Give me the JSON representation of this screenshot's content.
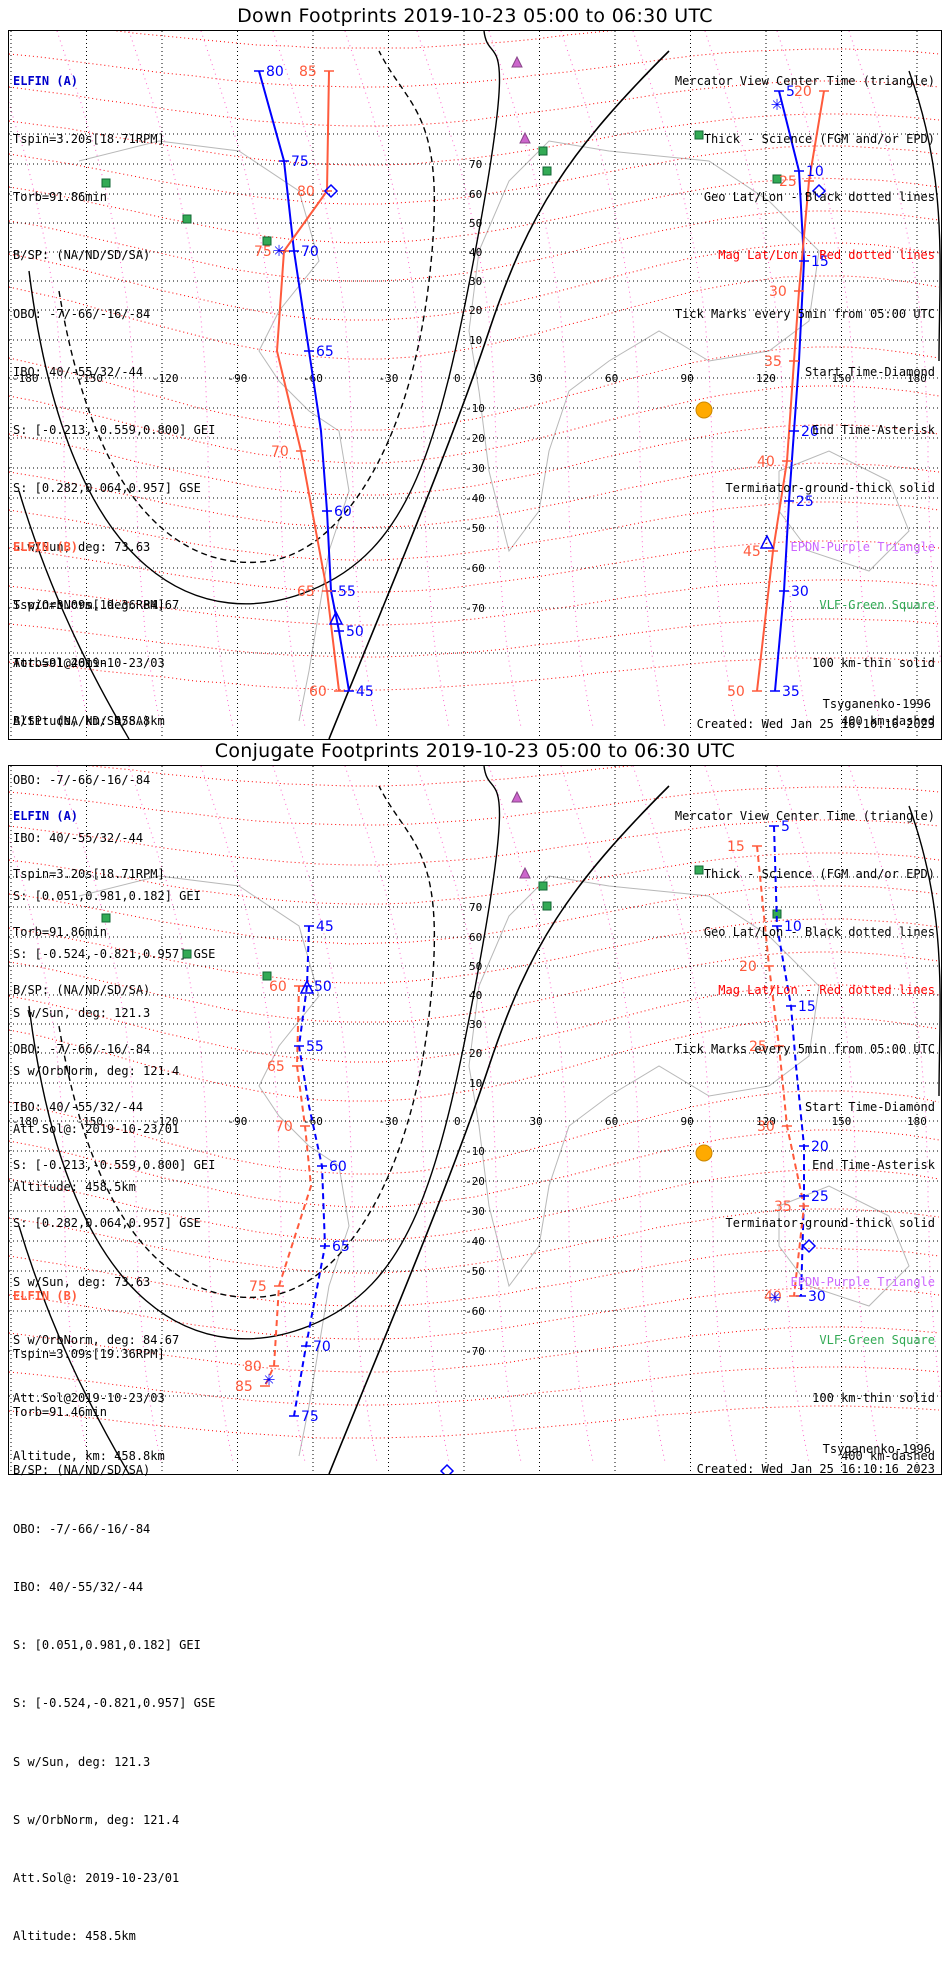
{
  "panels": [
    {
      "id": "down",
      "title": "Down Footprints 2019-10-23 05:00 to 06:30 UTC",
      "elfin_a": {
        "header": "ELFIN (A)",
        "lines": [
          "Tspin=3.20s[18.71RPM]",
          "Torb=91.86min",
          "B/SP: (NA/ND/SD/SA)",
          "OBO: -7/-66/-16/-84",
          "IBO: 40/-55/32/-44",
          "S: [-0.213,-0.559,0.800] GEI",
          "S: [0.282,0.064,0.957] GSE",
          "S w/Sun, deg: 73.63",
          "S w/OrbNorm, deg: 84.67",
          "Att.Sol@2019-10-23/03",
          "Altitude, km: 458.8km"
        ]
      },
      "elfin_b": {
        "header": "ELFIN (B)",
        "lines": [
          "Tspin=3.09s[19.36RPM]",
          "Torb=91.46min",
          "B/SP: (NA/ND/SD/SA)",
          "OBO: -7/-66/-16/-84",
          "IBO: 40/-55/32/-44",
          "S: [0.051,0.981,0.182] GEI",
          "S: [-0.524,-0.821,0.957] GSE",
          "S w/Sun, deg: 121.3",
          "S w/OrbNorm, deg: 121.4",
          "Att.Sol@: 2019-10-23/01",
          "Altitude: 458.5km"
        ]
      },
      "legend": [
        "Mercator View Center Time (triangle)",
        "Thick - Science (FGM and/or EPD)",
        "Geo Lat/Lon - Black dotted lines",
        "Mag Lat/Lon - Red dotted lines",
        "Tick Marks every 5min from 05:00 UTC",
        "Start Time-Diamond",
        "End Time-Asterisk",
        "Terminator-ground-thick solid",
        "EPDN-Purple Triangle",
        "VLF-Green Square",
        "100 km-thin solid",
        "400 km-dashed"
      ],
      "model": "Tsyganenko-1996",
      "created": "Created: Wed Jan 25 16:10:16 2023"
    },
    {
      "id": "conjugate",
      "title": "Conjugate Footprints 2019-10-23 05:00 to 06:30 UTC",
      "elfin_a": {
        "header": "ELFIN (A)",
        "lines": [
          "Tspin=3.20s[18.71RPM]",
          "Torb=91.86min",
          "B/SP: (NA/ND/SD/SA)",
          "OBO: -7/-66/-16/-84",
          "IBO: 40/-55/32/-44",
          "S: [-0.213,-0.559,0.800] GEI",
          "S: [0.282,0.064,0.957] GSE",
          "S w/Sun, deg: 73.63",
          "S w/OrbNorm, deg: 84.67",
          "Att.Sol@2019-10-23/03",
          "Altitude, km: 458.8km"
        ]
      },
      "elfin_b": {
        "header": "ELFIN (B)",
        "lines": [
          "Tspin=3.09s[19.36RPM]",
          "Torb=91.46min",
          "B/SP: (NA/ND/SD/SA)",
          "OBO: -7/-66/-16/-84",
          "IBO: 40/-55/32/-44",
          "S: [0.051,0.981,0.182] GEI",
          "S: [-0.524,-0.821,0.957] GSE",
          "S w/Sun, deg: 121.3",
          "S w/OrbNorm, deg: 121.4",
          "Att.Sol@: 2019-10-23/01",
          "Altitude: 458.5km"
        ]
      },
      "legend": [
        "Mercator View Center Time (triangle)",
        "Thick - Science (FGM and/or EPD)",
        "Geo Lat/Lon - Black dotted lines",
        "Mag Lat/Lon - Red dotted lines",
        "Tick Marks every 5min from 05:00 UTC",
        "Start Time-Diamond",
        "End Time-Asterisk",
        "Terminator-ground-thick solid",
        "EPDN-Purple Triangle",
        "VLF-Green Square",
        "100 km-thin solid",
        "400 km-dashed"
      ],
      "model": "Tsyganenko-1996",
      "created": "Created: Wed Jan 25 16:10:16 2023"
    }
  ],
  "map": {
    "lon_ticks": [
      "-180",
      "-150",
      "-120",
      "-90",
      "-60",
      "-30",
      "0",
      "30",
      "60",
      "90",
      "120",
      "150",
      "180"
    ],
    "lat_ticks_north": [
      "70",
      "60",
      "50",
      "40",
      "30",
      "20",
      "10"
    ],
    "lat_ticks_south": [
      "-10",
      "-20",
      "-30",
      "-40",
      "-50",
      "-60",
      "-70"
    ]
  },
  "colors": {
    "elfin_a": "#0000ff",
    "elfin_b": "#ff5a3c",
    "mag_grid": "#ff0000",
    "epdn": "#cc66ff",
    "vlf": "#33aa55",
    "coast": "#b8b8b8",
    "sun": "#ffaa00"
  },
  "tracks": {
    "down": {
      "a_ticks": [
        "80",
        "75",
        "70",
        "65",
        "60",
        "55",
        "50",
        "45",
        "5",
        "10",
        "15",
        "20",
        "25",
        "30",
        "35"
      ],
      "b_ticks": [
        "85",
        "80",
        "75",
        "70",
        "65",
        "60",
        "20",
        "25",
        "30",
        "35",
        "40",
        "45",
        "50"
      ]
    },
    "conjugate": {
      "a_ticks": [
        "45",
        "50",
        "55",
        "60",
        "65",
        "70",
        "75",
        "5",
        "10",
        "15",
        "20",
        "25",
        "30"
      ],
      "b_ticks": [
        "60",
        "65",
        "70",
        "75",
        "80",
        "85",
        "15",
        "20",
        "25",
        "30",
        "35",
        "40"
      ]
    }
  }
}
